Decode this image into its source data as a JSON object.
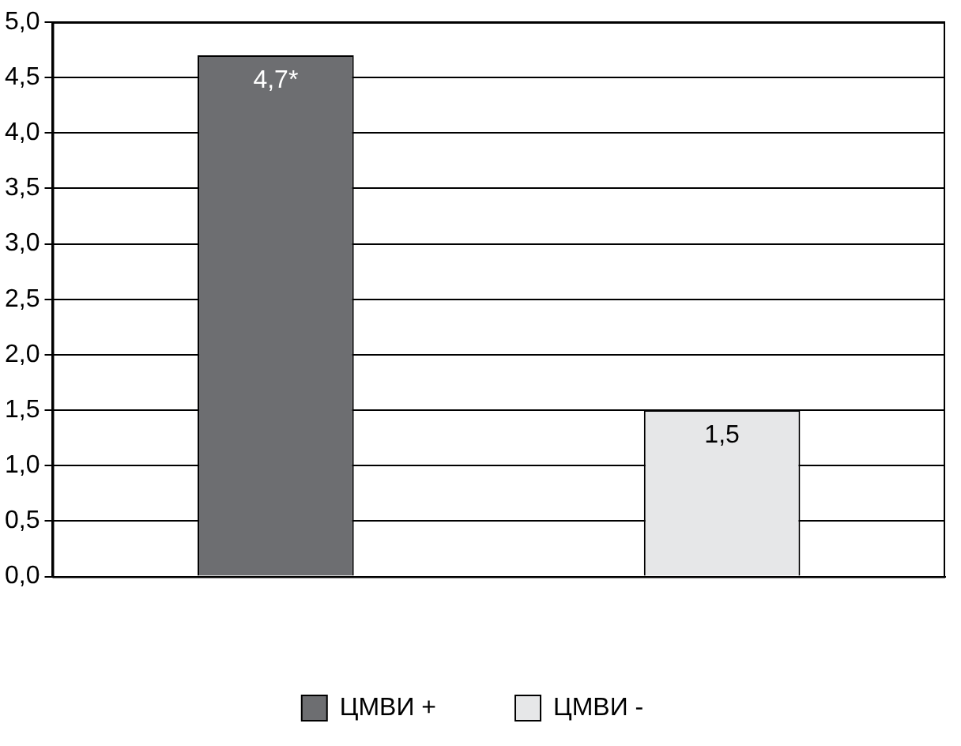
{
  "chart_data": {
    "type": "bar",
    "categories": [
      null,
      null
    ],
    "series": [
      {
        "name": "ЦМВИ +",
        "color": "#6d6e71",
        "values": [
          4.7,
          null
        ],
        "value_labels": [
          "4,7*",
          null
        ]
      },
      {
        "name": "ЦМВИ -",
        "color": "#e6e7e8",
        "values": [
          null,
          1.5
        ],
        "value_labels": [
          null,
          "1,5"
        ]
      }
    ],
    "ylim": [
      0,
      5
    ],
    "yticks": [
      {
        "value": 0,
        "label": "0,0"
      },
      {
        "value": 0.5,
        "label": "0,5"
      },
      {
        "value": 1,
        "label": "1,0"
      },
      {
        "value": 1.5,
        "label": "1,5"
      },
      {
        "value": 2,
        "label": "2,0"
      },
      {
        "value": 2.5,
        "label": "2,5"
      },
      {
        "value": 3,
        "label": "3,0"
      },
      {
        "value": 3.5,
        "label": "3,5"
      },
      {
        "value": 4,
        "label": "4,0"
      },
      {
        "value": 4.5,
        "label": "4,5"
      },
      {
        "value": 5,
        "label": "5,0"
      }
    ],
    "grid": "y",
    "legend": "bottom"
  }
}
